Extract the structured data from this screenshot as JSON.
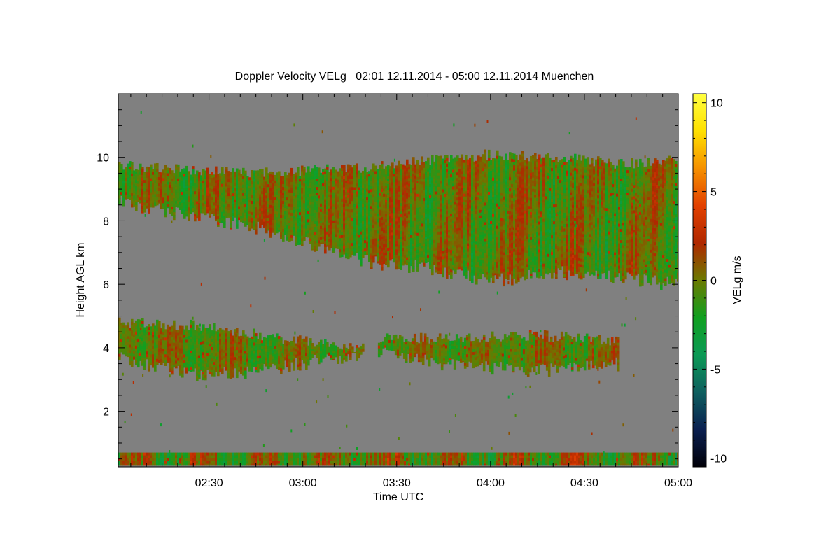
{
  "chart_data": {
    "type": "heatmap",
    "title": "Doppler Velocity VELg   02:01 12.11.2014 - 05:00 12.11.2014 Muenchen",
    "xlabel": "Time UTC",
    "ylabel": "Height AGL km",
    "colorbar_label": "VELg m/s",
    "x_range": [
      "02:01",
      "05:00"
    ],
    "x_ticks": [
      "02:30",
      "03:00",
      "03:30",
      "04:00",
      "04:30",
      "05:00"
    ],
    "y_range": [
      0.25,
      12.0
    ],
    "y_ticks": [
      2,
      4,
      6,
      8,
      10
    ],
    "colorbar_range": [
      -10.5,
      10.5
    ],
    "colorbar_ticks": [
      10,
      5,
      0,
      -5,
      -10
    ],
    "colormap": [
      "#000008",
      "#0a1f50",
      "#0e5f5f",
      "#0b9a55",
      "#10a020",
      "#6b7a00",
      "#b02800",
      "#e24000",
      "#f59000",
      "#ffe000",
      "#ffff40"
    ],
    "background_color": "#808080",
    "layers": [
      {
        "name": "upper cloud layer",
        "x_start": "02:01",
        "x_end": "05:00",
        "top_km": [
          9.8,
          9.6,
          9.5,
          9.6,
          9.7,
          9.9,
          10.1,
          10.0,
          9.8,
          9.9
        ],
        "base_km": [
          8.6,
          8.2,
          7.9,
          7.3,
          6.7,
          6.5,
          6.1,
          6.4,
          6.2,
          6.0
        ],
        "velocity_range": [
          -3,
          2
        ]
      },
      {
        "name": "mid cloud layer A",
        "x_start": "02:01",
        "x_end": "03:19",
        "top_km": [
          4.8,
          4.7,
          4.3,
          4.0
        ],
        "base_km": [
          3.7,
          3.1,
          3.4,
          3.85
        ],
        "velocity_range": [
          -2.5,
          1.5
        ]
      },
      {
        "name": "mid cloud layer B",
        "x_start": "03:24",
        "x_end": "04:41",
        "top_km": [
          4.3,
          4.3,
          4.4,
          4.2
        ],
        "base_km": [
          3.9,
          3.4,
          3.3,
          3.5
        ],
        "velocity_range": [
          -2.5,
          1.5
        ]
      },
      {
        "name": "near-ground clutter",
        "x_start": "02:01",
        "x_end": "05:00",
        "top_km": [
          0.7
        ],
        "base_km": [
          0.3
        ],
        "velocity_range": [
          -4,
          3
        ]
      }
    ]
  }
}
